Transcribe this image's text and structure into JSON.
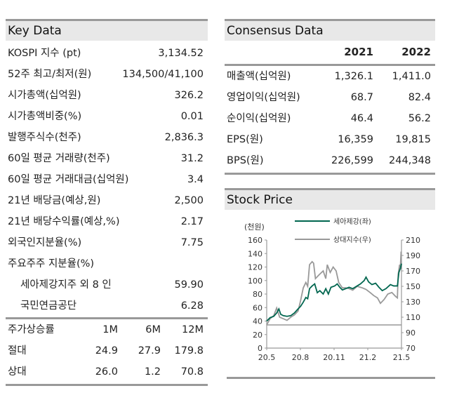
{
  "key_data": {
    "title": "Key Data",
    "rows": [
      {
        "label": "KOSPI 지수 (pt)",
        "value": "3,134.52"
      },
      {
        "label": "52주 최고/최저(원)",
        "value": "134,500/41,100"
      },
      {
        "label": "시가총액(십억원)",
        "value": "326.2"
      },
      {
        "label": "시가총액비중(%)",
        "value": "0.01"
      },
      {
        "label": "발행주식수(천주)",
        "value": "2,836.3"
      },
      {
        "label": "60일 평균 거래량(천주)",
        "value": "31.2"
      },
      {
        "label": "60일 평균 거래대금(십억원)",
        "value": "3.4"
      },
      {
        "label": "21년 배당금(예상,원)",
        "value": "2,500"
      },
      {
        "label": "21년 배당수익률(예상,%)",
        "value": "2.17"
      },
      {
        "label": "외국인지분율(%)",
        "value": "7.75"
      }
    ],
    "shareholders_label": "주요주주 지분율(%)",
    "shareholders": [
      {
        "label": "세아제강지주 외 8 인",
        "value": "59.90"
      },
      {
        "label": "국민연금공단",
        "value": "6.28"
      }
    ],
    "returns": {
      "label": "주가상승률",
      "cols": [
        "1M",
        "6M",
        "12M"
      ],
      "rows": [
        {
          "label": "절대",
          "values": [
            "24.9",
            "27.9",
            "179.8"
          ]
        },
        {
          "label": "상대",
          "values": [
            "26.0",
            "1.2",
            "70.8"
          ]
        }
      ]
    }
  },
  "consensus": {
    "title": "Consensus Data",
    "years": [
      "2021",
      "2022"
    ],
    "rows": [
      {
        "label": "매출액(십억원)",
        "values": [
          "1,326.1",
          "1,411.0"
        ]
      },
      {
        "label": "영업이익(십억원)",
        "values": [
          "68.7",
          "82.4"
        ]
      },
      {
        "label": "순이익(십억원)",
        "values": [
          "46.4",
          "56.2"
        ]
      },
      {
        "label": "EPS(원)",
        "values": [
          "16,359",
          "19,815"
        ]
      },
      {
        "label": "BPS(원)",
        "values": [
          "226,599",
          "244,348"
        ]
      }
    ]
  },
  "stock_price": {
    "title": "Stock Price"
  },
  "chart_data": {
    "type": "line",
    "ylabel": "(천원)",
    "ylim": [
      0,
      160
    ],
    "y2lim": [
      70,
      210
    ],
    "yticks": [
      "0",
      "20",
      "40",
      "60",
      "80",
      "100",
      "120",
      "140",
      "160"
    ],
    "y2ticks": [
      "70",
      "90",
      "110",
      "130",
      "150",
      "170",
      "190",
      "210"
    ],
    "xticks": [
      "20.5",
      "20.8",
      "20.11",
      "21.2",
      "21.5"
    ],
    "colors": {
      "stock": "#00664f",
      "relative": "#999999"
    },
    "baseline_right": 100,
    "series": [
      {
        "name": "세아제강(좌)",
        "axis": "left",
        "points": [
          [
            "2020-05-01",
            40
          ],
          [
            "2020-05-10",
            45
          ],
          [
            "2020-05-20",
            47
          ],
          [
            "2020-05-28",
            52
          ],
          [
            "2020-06-03",
            58
          ],
          [
            "2020-06-08",
            50
          ],
          [
            "2020-06-15",
            48
          ],
          [
            "2020-06-25",
            47
          ],
          [
            "2020-07-05",
            48
          ],
          [
            "2020-07-15",
            52
          ],
          [
            "2020-07-25",
            58
          ],
          [
            "2020-08-01",
            62
          ],
          [
            "2020-08-08",
            68
          ],
          [
            "2020-08-15",
            75
          ],
          [
            "2020-08-20",
            73
          ],
          [
            "2020-08-25",
            88
          ],
          [
            "2020-09-01",
            92
          ],
          [
            "2020-09-08",
            95
          ],
          [
            "2020-09-15",
            82
          ],
          [
            "2020-09-22",
            85
          ],
          [
            "2020-10-01",
            80
          ],
          [
            "2020-10-08",
            88
          ],
          [
            "2020-10-15",
            80
          ],
          [
            "2020-10-22",
            90
          ],
          [
            "2020-11-01",
            92
          ],
          [
            "2020-11-08",
            95
          ],
          [
            "2020-11-15",
            90
          ],
          [
            "2020-11-22",
            86
          ],
          [
            "2020-12-01",
            88
          ],
          [
            "2020-12-10",
            90
          ],
          [
            "2020-12-20",
            88
          ],
          [
            "2021-01-01",
            92
          ],
          [
            "2021-01-10",
            95
          ],
          [
            "2021-01-20",
            100
          ],
          [
            "2021-01-25",
            105
          ],
          [
            "2021-02-01",
            98
          ],
          [
            "2021-02-10",
            94
          ],
          [
            "2021-02-20",
            96
          ],
          [
            "2021-03-01",
            90
          ],
          [
            "2021-03-10",
            85
          ],
          [
            "2021-03-20",
            88
          ],
          [
            "2021-04-01",
            94
          ],
          [
            "2021-04-10",
            92
          ],
          [
            "2021-04-20",
            92
          ],
          [
            "2021-04-24",
            112
          ],
          [
            "2021-04-28",
            118
          ],
          [
            "2021-05-01",
            125
          ]
        ]
      },
      {
        "name": "상대지수(우)",
        "axis": "right",
        "points": [
          [
            "2020-05-01",
            100
          ],
          [
            "2020-05-10",
            108
          ],
          [
            "2020-05-20",
            112
          ],
          [
            "2020-05-28",
            122
          ],
          [
            "2020-06-05",
            110
          ],
          [
            "2020-06-15",
            108
          ],
          [
            "2020-06-25",
            106
          ],
          [
            "2020-07-05",
            110
          ],
          [
            "2020-07-15",
            113
          ],
          [
            "2020-07-25",
            118
          ],
          [
            "2020-08-01",
            132
          ],
          [
            "2020-08-08",
            148
          ],
          [
            "2020-08-15",
            155
          ],
          [
            "2020-08-20",
            150
          ],
          [
            "2020-08-25",
            178
          ],
          [
            "2020-09-01",
            182
          ],
          [
            "2020-09-05",
            180
          ],
          [
            "2020-09-10",
            160
          ],
          [
            "2020-09-20",
            165
          ],
          [
            "2020-10-01",
            170
          ],
          [
            "2020-10-08",
            160
          ],
          [
            "2020-10-12",
            178
          ],
          [
            "2020-10-20",
            168
          ],
          [
            "2020-10-28",
            175
          ],
          [
            "2020-11-05",
            170
          ],
          [
            "2020-11-12",
            155
          ],
          [
            "2020-11-22",
            148
          ],
          [
            "2020-12-01",
            148
          ],
          [
            "2020-12-10",
            147
          ],
          [
            "2020-12-20",
            145
          ],
          [
            "2021-01-01",
            150
          ],
          [
            "2021-01-15",
            148
          ],
          [
            "2021-01-25",
            146
          ],
          [
            "2021-02-05",
            142
          ],
          [
            "2021-02-15",
            138
          ],
          [
            "2021-02-25",
            135
          ],
          [
            "2021-03-05",
            128
          ],
          [
            "2021-03-15",
            133
          ],
          [
            "2021-03-25",
            140
          ],
          [
            "2021-04-05",
            142
          ],
          [
            "2021-04-15",
            137
          ],
          [
            "2021-04-20",
            135
          ],
          [
            "2021-04-22",
            165
          ],
          [
            "2021-04-26",
            178
          ],
          [
            "2021-04-28",
            175
          ],
          [
            "2021-04-30",
            195
          ],
          [
            "2021-05-01",
            172
          ]
        ]
      }
    ]
  }
}
